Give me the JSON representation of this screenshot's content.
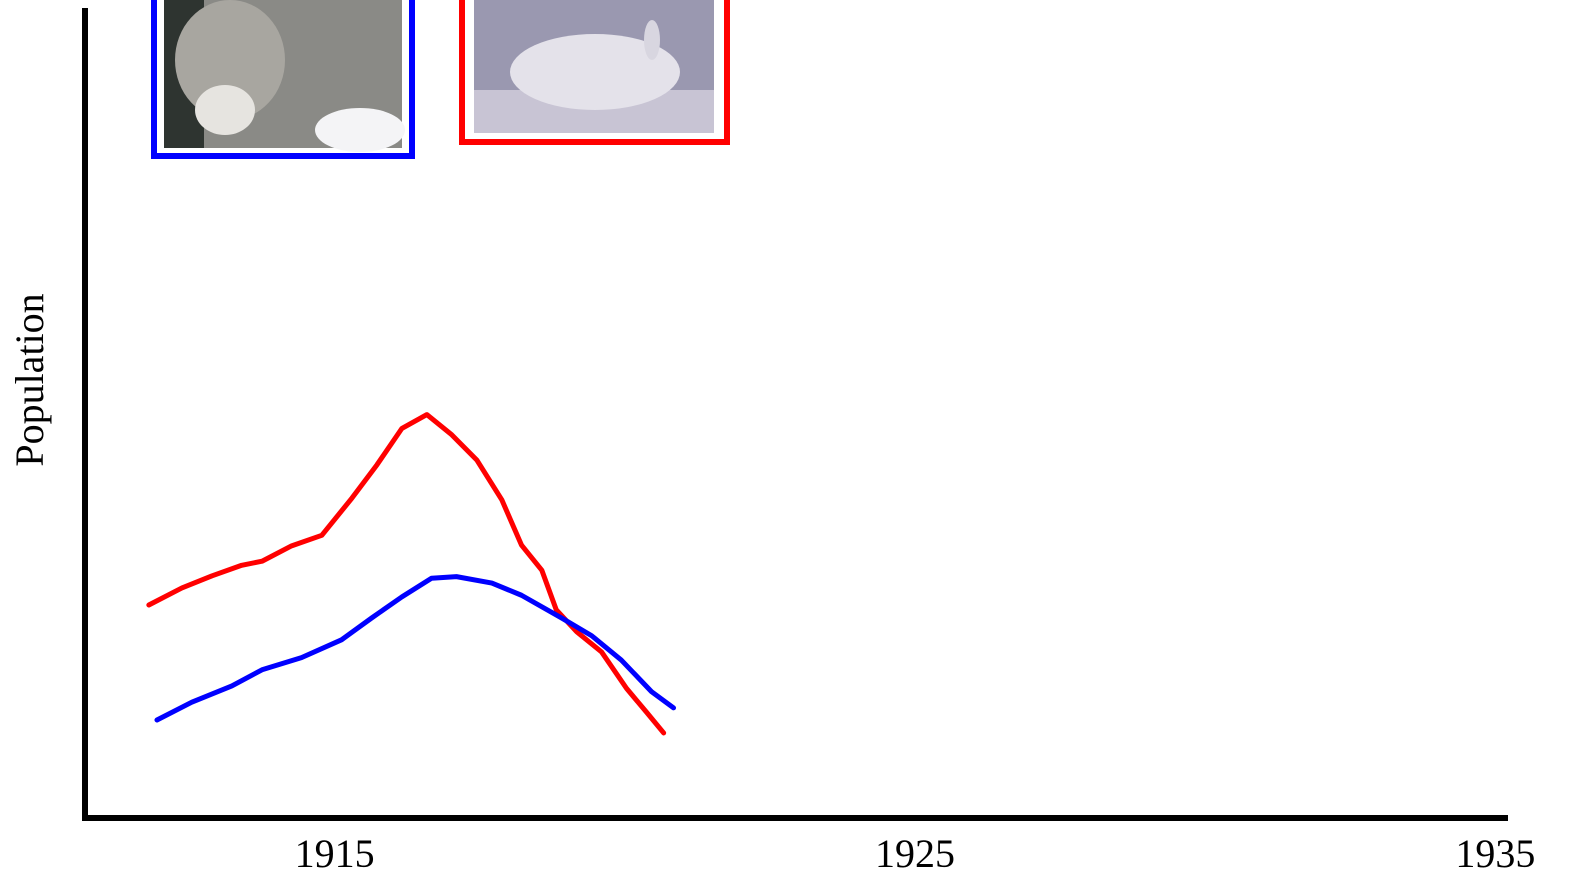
{
  "chart_data": {
    "type": "line",
    "y_label": "Population",
    "xlim": [
      1910.7,
      1935.2
    ],
    "xticks": [
      1915,
      1925,
      1935
    ],
    "ylim": [
      0,
      100
    ],
    "series": [
      {
        "color": "#ff0000",
        "x": [
          1911.8,
          1912.37,
          1912.89,
          1913.4,
          1913.75,
          1914.26,
          1914.78,
          1915.3,
          1915.73,
          1916.16,
          1916.59,
          1917.02,
          1917.45,
          1917.88,
          1918.22,
          1918.57,
          1918.82,
          1919.17,
          1919.6,
          1920.03,
          1920.37,
          1920.67
        ],
        "values": [
          26.3,
          28.4,
          29.9,
          31.2,
          31.7,
          33.6,
          34.9,
          39.5,
          43.6,
          48.1,
          49.8,
          47.3,
          44.2,
          39.3,
          33.7,
          30.6,
          25.7,
          23.0,
          20.5,
          16.0,
          13.1,
          10.5
        ]
      },
      {
        "color": "#0000ff",
        "x": [
          1911.94,
          1912.54,
          1913.23,
          1913.75,
          1914.43,
          1915.12,
          1915.64,
          1916.16,
          1916.67,
          1917.1,
          1917.71,
          1918.22,
          1918.91,
          1919.43,
          1919.94,
          1920.46,
          1920.84
        ],
        "values": [
          12.1,
          14.3,
          16.3,
          18.3,
          19.8,
          22.0,
          24.7,
          27.3,
          29.6,
          29.8,
          29.0,
          27.5,
          24.7,
          22.5,
          19.5,
          15.6,
          13.6
        ]
      }
    ]
  }
}
